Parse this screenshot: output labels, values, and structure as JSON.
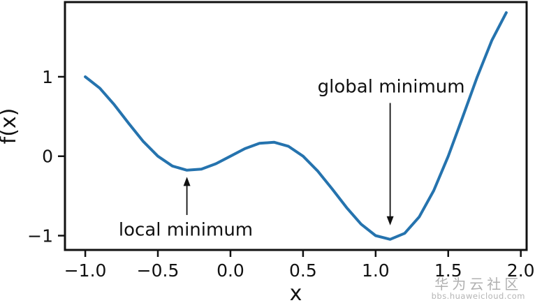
{
  "chart_data": {
    "type": "line",
    "title": "",
    "xlabel": "x",
    "ylabel": "f(x)",
    "x": [
      -1.0,
      -0.9,
      -0.8,
      -0.7,
      -0.6,
      -0.5,
      -0.4,
      -0.3,
      -0.2,
      -0.1,
      0.0,
      0.1,
      0.2,
      0.3,
      0.4,
      0.5,
      0.6,
      0.7,
      0.8,
      0.9,
      1.0,
      1.1,
      1.2,
      1.3,
      1.4,
      1.5,
      1.6,
      1.7,
      1.8,
      1.9
    ],
    "y": [
      1.0,
      0.856,
      0.647,
      0.411,
      0.185,
      0.0,
      -0.124,
      -0.176,
      -0.162,
      -0.095,
      0.0,
      0.095,
      0.162,
      0.176,
      0.124,
      0.0,
      -0.185,
      -0.411,
      -0.647,
      -0.856,
      -1.0,
      -1.046,
      -0.971,
      -0.764,
      -0.433,
      0.0,
      0.494,
      0.999,
      1.456,
      1.807
    ],
    "xlim": [
      -1.14,
      2.04
    ],
    "ylim": [
      -1.18,
      1.94
    ],
    "xticks": [
      -1.0,
      -0.5,
      0.0,
      0.5,
      1.0,
      1.5,
      2.0
    ],
    "xtick_labels": [
      "−1.0",
      "−0.5",
      "0.0",
      "0.5",
      "1.0",
      "1.5",
      "2.0"
    ],
    "yticks": [
      1,
      0,
      -1
    ],
    "ytick_labels": [
      "1",
      "0",
      "−1"
    ],
    "grid": false,
    "legend": false,
    "line_color": "#2573ae",
    "axis_color": "#111111",
    "annotations": [
      {
        "text": "local minimum",
        "text_xy": [
          -0.77,
          -1.0
        ],
        "arrow_from": [
          -0.3,
          -0.74
        ],
        "arrow_to": [
          -0.3,
          -0.26
        ]
      },
      {
        "text": "global minimum",
        "text_xy": [
          0.6,
          0.8
        ],
        "arrow_from": [
          1.1,
          0.67
        ],
        "arrow_to": [
          1.1,
          -0.87
        ]
      }
    ]
  },
  "watermark": {
    "line1": "华为云社区",
    "line2": "bbs.huaweicloud.com"
  }
}
